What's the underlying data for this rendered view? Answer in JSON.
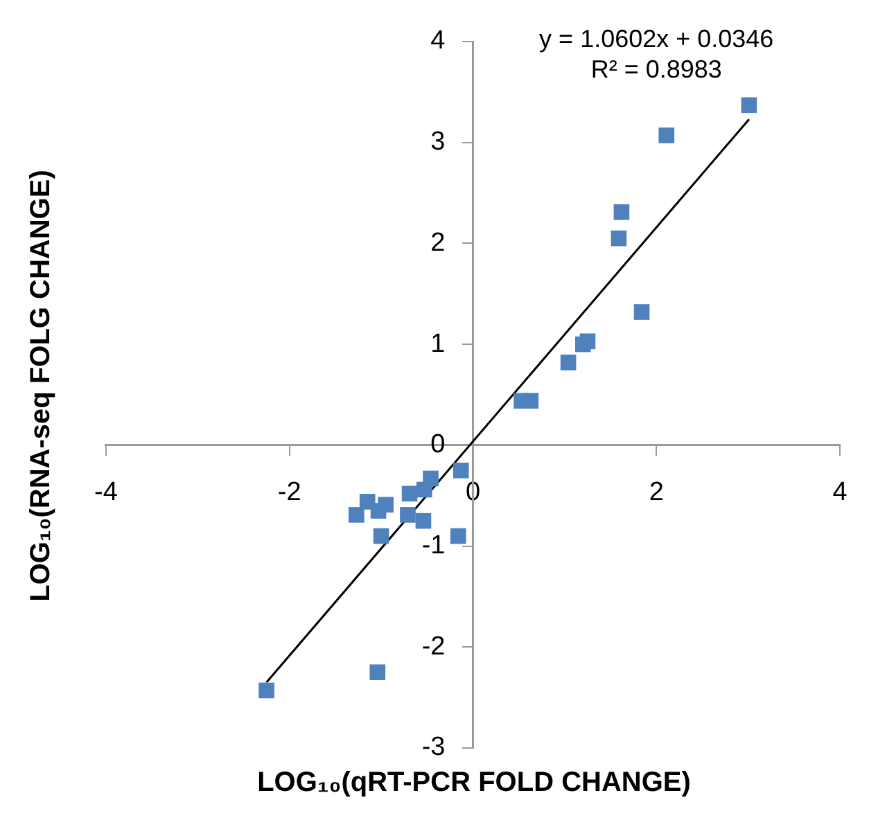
{
  "chart_data": {
    "type": "scatter",
    "xlabel": "LOG₁₀(qRT-PCR FOLD CHANGE)",
    "ylabel": "LOG₁₀(RNA-seq FOLG CHANGE)",
    "annotations": [
      "y = 1.0602x + 0.0346",
      "R² = 0.8983"
    ],
    "xlim": [
      -4,
      4
    ],
    "xticks": [
      -4,
      -2,
      0,
      2,
      4
    ],
    "ylim": [
      -3,
      4
    ],
    "yticks": [
      -3,
      -2,
      -1,
      0,
      1,
      2,
      3,
      4
    ],
    "grid": false,
    "legend": false,
    "series": [
      {
        "type": "scatter",
        "color": "#4f81bd",
        "marker": "square",
        "x": [
          3.01,
          2.11,
          1.62,
          1.59,
          1.84,
          1.25,
          1.2,
          1.04,
          0.53,
          0.63,
          -0.13,
          -0.46,
          -0.53,
          -0.69,
          -0.71,
          -0.54,
          -0.16,
          -1.0,
          -1.15,
          -0.95,
          -1.03,
          -1.27,
          -1.04,
          -2.25
        ],
        "values": [
          3.37,
          3.07,
          2.31,
          2.05,
          1.32,
          1.03,
          1.0,
          0.82,
          0.44,
          0.44,
          -0.25,
          -0.33,
          -0.44,
          -0.48,
          -0.69,
          -0.75,
          -0.9,
          -0.9,
          -0.56,
          -0.59,
          -0.65,
          -0.69,
          -2.25,
          -2.43
        ]
      },
      {
        "type": "line",
        "color": "#000000",
        "marker": "none",
        "x": [
          -2.25,
          3.01
        ],
        "values": [
          -2.35,
          3.23
        ]
      }
    ]
  }
}
